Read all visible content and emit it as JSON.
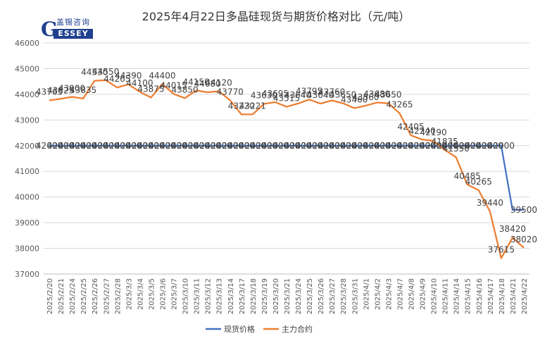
{
  "logo": {
    "letter": "G",
    "cn": "盖锡咨询",
    "en": "ESSEY"
  },
  "chart_data": {
    "type": "line",
    "title": "2025年4月22日多晶硅现货与期货价格对比（元/吨）",
    "xlabel": "",
    "ylabel": "",
    "ylim": [
      37000,
      46000
    ],
    "yticks": [
      "37000",
      "38000",
      "39000",
      "40000",
      "41000",
      "42000",
      "43000",
      "44000",
      "45000",
      "46000"
    ],
    "grid": true,
    "legend_position": "bottom",
    "categories": [
      "2025/2/20",
      "2025/2/21",
      "2025/2/24",
      "2025/2/25",
      "2025/2/26",
      "2025/2/27",
      "2025/2/28",
      "2025/3/3",
      "2025/3/4",
      "2025/3/5",
      "2025/3/6",
      "2025/3/7",
      "2025/3/10",
      "2025/3/11",
      "2025/3/12",
      "2025/3/13",
      "2025/3/14",
      "2025/3/17",
      "2025/3/18",
      "2025/3/19",
      "2025/3/20",
      "2025/3/21",
      "2025/3/24",
      "2025/3/25",
      "2025/3/26",
      "2025/3/27",
      "2025/3/28",
      "2025/3/31",
      "2025/4/1",
      "2025/4/2",
      "2025/4/3",
      "2025/4/7",
      "2025/4/8",
      "2025/4/9",
      "2025/4/10",
      "2025/4/11",
      "2025/4/14",
      "2025/4/15",
      "2025/4/16",
      "2025/4/17",
      "2025/4/18",
      "2025/4/21",
      "2025/4/22"
    ],
    "series": [
      {
        "name": "现货价格",
        "color": "#4472c4",
        "values": [
          42000,
          42000,
          42000,
          42000,
          42000,
          42000,
          42000,
          42000,
          42000,
          42000,
          42000,
          42000,
          42000,
          42000,
          42000,
          42000,
          42000,
          42000,
          42000,
          42000,
          42000,
          42000,
          42000,
          42000,
          42000,
          42000,
          42000,
          42000,
          42000,
          42000,
          42000,
          42000,
          42000,
          42000,
          42000,
          42000,
          42000,
          42000,
          42000,
          42000,
          42000,
          39500,
          39500
        ],
        "labels": [
          "42000",
          "42000",
          "42000",
          "42000",
          "42000",
          "42000",
          "42000",
          "42000",
          "42000",
          "42000",
          "42000",
          "42000",
          "42000",
          "42000",
          "42000",
          "42000",
          "42000",
          "42000",
          "42000",
          "42000",
          "42000",
          "42000",
          "42000",
          "42000",
          "42000",
          "42000",
          "42000",
          "42000",
          "42000",
          "42000",
          "42000",
          "42000",
          "42000",
          "42000",
          "42000",
          "42000",
          "42000",
          "42000",
          "42000",
          "42000",
          "42000",
          "",
          "39500"
        ]
      },
      {
        "name": "主力合约",
        "color": "#ed7d31",
        "values": [
          43765,
          43825,
          43900,
          43835,
          44530,
          44550,
          44265,
          44390,
          44100,
          43875,
          44400,
          44015,
          43850,
          44150,
          44080,
          44120,
          43770,
          43220,
          43221,
          43630,
          43695,
          43515,
          43640,
          43795,
          43640,
          43760,
          43650,
          43460,
          43560,
          43680,
          43650,
          43265,
          42405,
          42240,
          42190,
          41835,
          41550,
          40485,
          40265,
          39440,
          37615,
          38420,
          38020
        ],
        "labels": [
          "43765",
          "43825",
          "43900",
          "43835",
          "44530",
          "44550",
          "44265",
          "44390",
          "44100",
          "43875",
          "44400",
          "44015",
          "43850",
          "44150",
          "44080",
          "44120",
          "43770",
          "43220",
          "43221",
          "43630",
          "43695",
          "43515",
          "43640",
          "43795",
          "43640",
          "43760",
          "43650",
          "43460",
          "43560",
          "43680",
          "43650",
          "43265",
          "42405",
          "42240",
          "42190",
          "41835",
          "41550",
          "40485",
          "40265",
          "39440",
          "37615",
          "38420",
          "38020"
        ]
      }
    ]
  }
}
